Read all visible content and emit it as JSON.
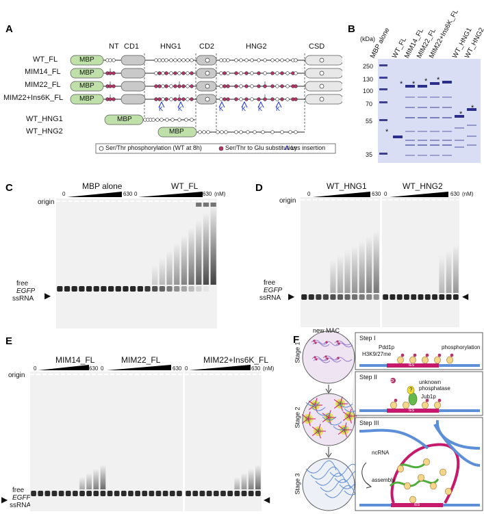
{
  "figure": {
    "panel_labels": {
      "A": "A",
      "B": "B",
      "C": "C",
      "D": "D",
      "E": "E",
      "F": "F"
    },
    "colors": {
      "mbp": "#bfe0a8",
      "domain": "#c9c9c9",
      "glu": "#b8336a",
      "lys": "#1a2fd8",
      "gel_bg": "#f2f2f2",
      "band": "#1f1f1f",
      "sds_bg": "#d7dcf4",
      "sds_band": "#2a2f8c",
      "pink_seg": "#c7196b",
      "blue_seg": "#5c8fd8",
      "green_ncrna": "#4caf3a"
    }
  },
  "panelA": {
    "domains": [
      "NT",
      "CD1",
      "HNG1",
      "CD2",
      "HNG2",
      "CSD"
    ],
    "constructs": [
      "WT_FL",
      "MIM14_FL",
      "MIM22_FL",
      "MIM22+Ins6K_FL",
      "WT_HNG1",
      "WT_HNG2"
    ],
    "mbp_label": "MBP",
    "lys_letter": "K",
    "legend": {
      "phos": "Ser/Thr phosphorylation (WT at 8h)",
      "glu": "Ser/Thr to Glu substitution",
      "lys": "Lys insertion"
    }
  },
  "panelB": {
    "unit": "(kDa)",
    "markers": [
      "250",
      "130",
      "100",
      "70",
      "55",
      "35"
    ],
    "lanes": [
      "MBP alone",
      "WT_FL",
      "MIM14_FL",
      "MIM22_FL",
      "MIM22+Ins6K_FL",
      "WT_HNG1",
      "WT_HNG2"
    ],
    "star": "*"
  },
  "panelC": {
    "groups": [
      "MBP alone",
      "WT_FL"
    ],
    "zero": "0",
    "max": "630",
    "unit": "(nM)",
    "origin": "origin",
    "free": "free",
    "egfp": "EGFP",
    "ssrna": "ssRNA"
  },
  "panelD": {
    "groups": [
      "WT_HNG1",
      "WT_HNG2"
    ],
    "zero": "0",
    "max": "630",
    "unit": "(nM)",
    "origin": "origin",
    "free": "free",
    "egfp": "EGFP",
    "ssrna": "ssRNA"
  },
  "panelE": {
    "groups": [
      "MIM14_FL",
      "MIM22_FL",
      "MIM22+Ins6K_FL"
    ],
    "zero": "0",
    "max": "630",
    "unit": "(nM)",
    "origin": "origin",
    "free": "free",
    "egfp": "EGFP",
    "ssrna": "ssRNA"
  },
  "panelF": {
    "new_mac": "new MAC",
    "stages": [
      "Stage 1",
      "Stage 2",
      "Stage 3"
    ],
    "steps": [
      "Step I",
      "Step II",
      "Step III"
    ],
    "labels": {
      "pdd1p": "Pdd1p",
      "h3k": "H3K9/27me",
      "phosphorylation": "phosphorylation",
      "unknown": "unknown",
      "phosphatase": "phosphatase",
      "jub1p": "Jub1p",
      "q": "?",
      "p": "P",
      "ncrna": "ncRNA",
      "assembly": "assembly",
      "ies": "IES"
    }
  }
}
